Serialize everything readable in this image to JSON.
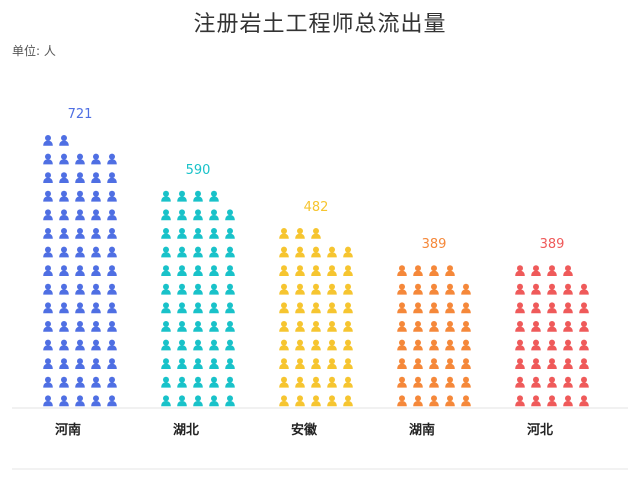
{
  "chart_data": {
    "type": "bar",
    "title": "注册岩土工程师总流出量",
    "unit_label": "单位: 人",
    "categories": [
      "河南",
      "湖北",
      "安徽",
      "湖南",
      "河北"
    ],
    "values": [
      721,
      590,
      482,
      389,
      389
    ],
    "colors": [
      "#4f6fe3",
      "#19c2c9",
      "#f6c530",
      "#f5883a",
      "#ef5a5a"
    ],
    "icon_name": "person-icon",
    "xlabel": "",
    "ylabel": "",
    "legend": "none",
    "grid": false
  }
}
